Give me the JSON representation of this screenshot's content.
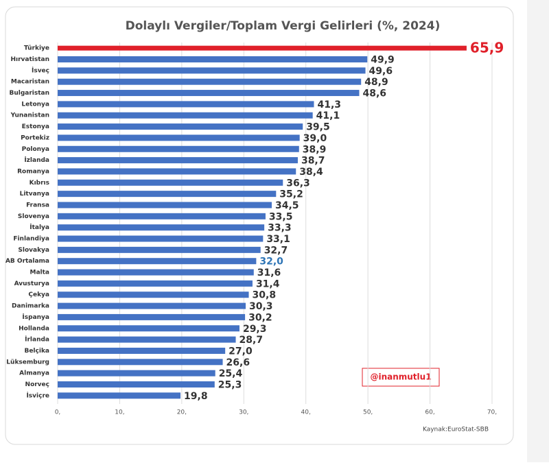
{
  "chart_data": {
    "type": "hbar",
    "title": "Dolaylı Vergiler/Toplam Vergi Gelirleri (%, 2024)",
    "categories": [
      "Türkiye",
      "Hırvatistan",
      "İsveç",
      "Macaristan",
      "Bulgaristan",
      "Letonya",
      "Yunanistan",
      "Estonya",
      "Portekiz",
      "Polonya",
      "İzlanda",
      "Romanya",
      "Kıbrıs",
      "Litvanya",
      "Fransa",
      "Slovenya",
      "İtalya",
      "Finlandiya",
      "Slovakya",
      "AB Ortalama",
      "Malta",
      "Avusturya",
      "Çekya",
      "Danimarka",
      "İspanya",
      "Hollanda",
      "İrlanda",
      "Belçika",
      "Lüksemburg",
      "Almanya",
      "Norveç",
      "İsviçre"
    ],
    "values": [
      65.9,
      49.9,
      49.6,
      48.9,
      48.6,
      41.3,
      41.1,
      39.5,
      39.0,
      38.9,
      38.7,
      38.4,
      36.3,
      35.2,
      34.5,
      33.5,
      33.3,
      33.1,
      32.7,
      32.0,
      31.6,
      31.4,
      30.8,
      30.3,
      30.2,
      29.3,
      28.7,
      27.0,
      26.6,
      25.4,
      25.3,
      19.8
    ],
    "value_labels": [
      "65,9",
      "49,9",
      "49,6",
      "48,9",
      "48,6",
      "41,3",
      "41,1",
      "39,5",
      "39,0",
      "38,9",
      "38,7",
      "38,4",
      "36,3",
      "35,2",
      "34,5",
      "33,5",
      "33,3",
      "33,1",
      "32,7",
      "32,0",
      "31,6",
      "31,4",
      "30,8",
      "30,3",
      "30,2",
      "29,3",
      "28,7",
      "27,0",
      "26,6",
      "25,4",
      "25,3",
      "19,8"
    ],
    "color": "#4472c4",
    "highlight_color": "#e0202a",
    "highlight_index": 0,
    "average_label_color": "#2e75b6",
    "average_index": 19,
    "xlim": [
      0,
      70
    ],
    "xticks": [
      {
        "value": 0,
        "label": "0,"
      },
      {
        "value": 10,
        "label": "10,"
      },
      {
        "value": 20,
        "label": "20,"
      },
      {
        "value": 30,
        "label": "30,"
      },
      {
        "value": 40,
        "label": "40,"
      },
      {
        "value": 50,
        "label": "50,"
      },
      {
        "value": 60,
        "label": "60,"
      },
      {
        "value": 70,
        "label": "70,"
      }
    ],
    "grid": true,
    "annotation": "@inanmutlu1",
    "source": "Kaynak:EuroStat-SBB"
  }
}
